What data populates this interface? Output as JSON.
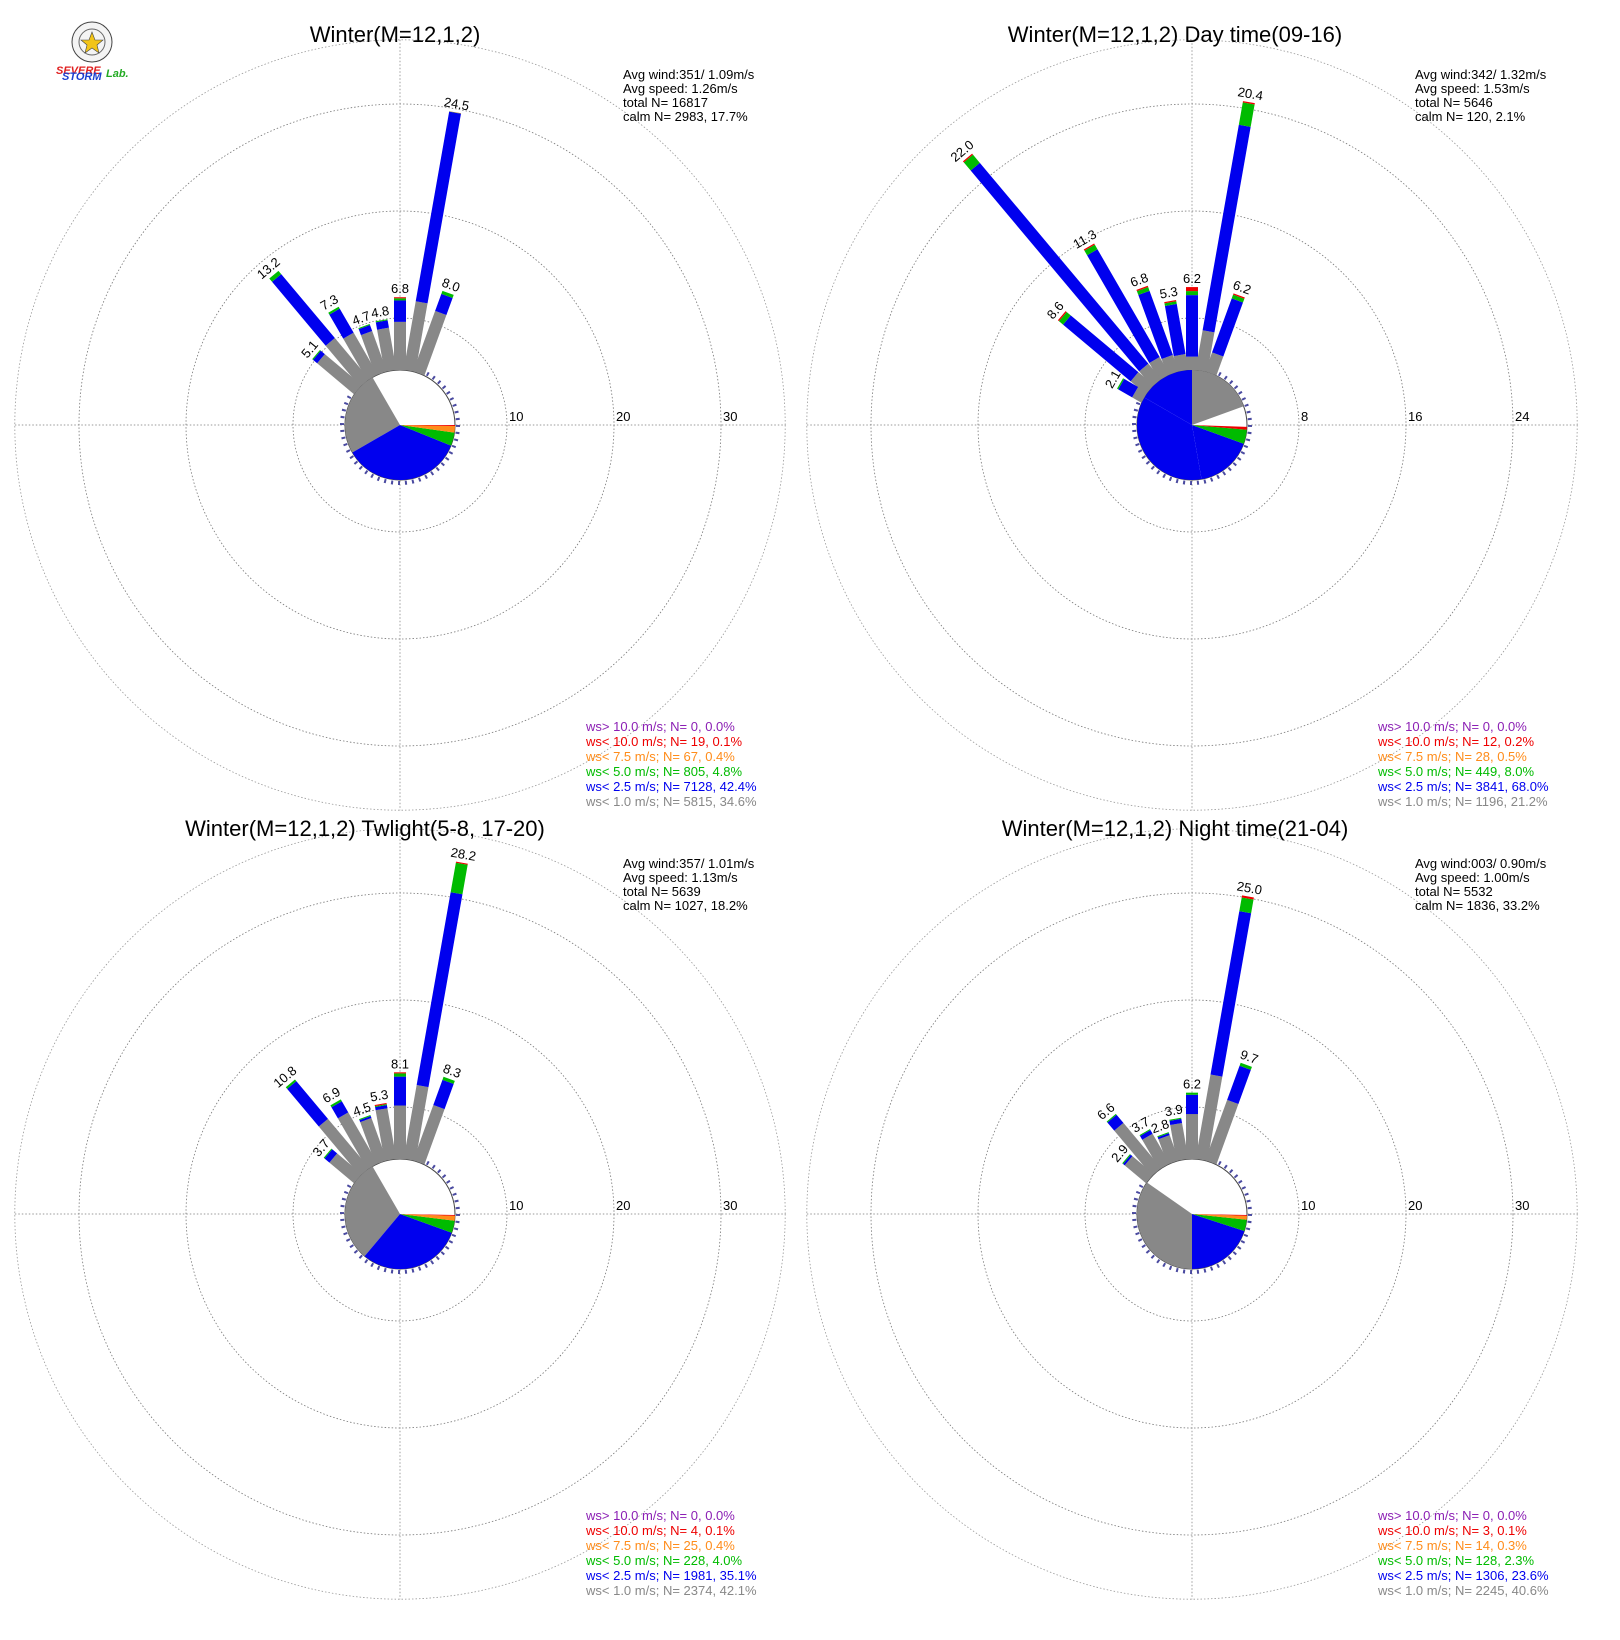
{
  "logo": {
    "lines": [
      "SEVERE",
      "STORM",
      "Lab."
    ],
    "colors": {
      "severe": "#e02020",
      "storm": "#1a3fd0",
      "lab": "#22aa22"
    }
  },
  "legend_colors": [
    "#8b1fb4",
    "#ee0000",
    "#ff8c1a",
    "#00bb00",
    "#0000ee",
    "#888888"
  ],
  "chart_data": [
    {
      "type": "wind-rose",
      "title": "Winter(M=12,1,2)",
      "rings": [
        10,
        20,
        30
      ],
      "stats": [
        "Avg wind:351/ 1.09m/s",
        "Avg speed: 1.26m/s",
        "total N=       16817",
        "calm N=   2983,  17.7%"
      ],
      "legend": [
        "ws> 10.0 m/s; N=     0,  0.0%",
        "ws< 10.0 m/s; N=    19,  0.1%",
        "ws<  7.5 m/s; N=    67,  0.4%",
        "ws<  5.0 m/s; N=   805,  4.8%",
        "ws<  2.5 m/s; N=  7128, 42.4%",
        "ws<  1.0 m/s; N=  5815, 34.6%"
      ],
      "calm_sectors": [
        {
          "start": 330,
          "end": 240,
          "color": "#888888"
        },
        {
          "start": 240,
          "end": 112,
          "color": "#0000ee"
        },
        {
          "start": 112,
          "end": 98,
          "color": "#00bb00"
        },
        {
          "start": 98,
          "end": 91,
          "color": "#ff8c1a"
        },
        {
          "start": 91,
          "end": 90,
          "color": "#ee0000"
        }
      ],
      "bars": [
        {
          "dir": 10,
          "value": 24.5,
          "label": "24.5",
          "segs": [
            6.5,
            18.0,
            0.02,
            0.02
          ]
        },
        {
          "dir": 20,
          "value": 8.0,
          "label": "8.0",
          "segs": [
            6.0,
            1.7,
            0.3,
            0.0
          ]
        },
        {
          "dir": 0,
          "value": 6.8,
          "label": "6.8",
          "segs": [
            4.5,
            2.0,
            0.2,
            0.1
          ]
        },
        {
          "dir": 350,
          "value": 4.8,
          "label": "4.8",
          "segs": [
            4.0,
            0.7,
            0.1,
            0.0
          ]
        },
        {
          "dir": 340,
          "value": 4.7,
          "label": "4.7",
          "segs": [
            4.0,
            0.6,
            0.1,
            0.0
          ]
        },
        {
          "dir": 330,
          "value": 7.3,
          "label": "7.3",
          "segs": [
            4.5,
            2.6,
            0.2,
            0.0
          ]
        },
        {
          "dir": 320,
          "value": 13.2,
          "label": "13.2",
          "segs": [
            5.0,
            7.8,
            0.4,
            0.0
          ]
        },
        {
          "dir": 310,
          "value": 5.1,
          "label": "5.1",
          "segs": [
            4.5,
            0.5,
            0.1,
            0.0
          ]
        }
      ]
    },
    {
      "type": "wind-rose",
      "title": "Winter(M=12,1,2) Day time(09-16)",
      "rings": [
        8,
        16,
        24
      ],
      "stats": [
        "Avg wind:342/ 1.32m/s",
        "Avg speed: 1.53m/s",
        "total N=        5646",
        "calm N=    120,   2.1%"
      ],
      "legend": [
        "ws> 10.0 m/s; N=     0,  0.0%",
        "ws< 10.0 m/s; N=    12,  0.2%",
        "ws<  7.5 m/s; N=    28,  0.5%",
        "ws<  5.0 m/s; N=   449,  8.0%",
        "ws<  2.5 m/s; N=  3841, 68.0%",
        "ws<  1.0 m/s; N=  1196, 21.2%"
      ],
      "calm_sectors": [
        {
          "start": 70,
          "end": 0,
          "color": "#888888"
        },
        {
          "start": 0,
          "end": 300,
          "color": "#0000ee"
        },
        {
          "start": 300,
          "end": 170,
          "color": "#0000ee"
        },
        {
          "start": 170,
          "end": 110,
          "color": "#0000ee"
        },
        {
          "start": 110,
          "end": 95,
          "color": "#00bb00"
        },
        {
          "start": 95,
          "end": 92,
          "color": "#ee0000"
        }
      ],
      "bars": [
        {
          "dir": 10,
          "value": 20.4,
          "label": "20.4",
          "segs": [
            3.0,
            15.6,
            1.7,
            0.1
          ]
        },
        {
          "dir": 20,
          "value": 6.2,
          "label": "6.2",
          "segs": [
            1.5,
            4.3,
            0.3,
            0.1
          ]
        },
        {
          "dir": 0,
          "value": 6.2,
          "label": "6.2",
          "segs": [
            1.0,
            4.6,
            0.3,
            0.3
          ]
        },
        {
          "dir": 350,
          "value": 5.3,
          "label": "5.3",
          "segs": [
            1.2,
            3.8,
            0.2,
            0.1
          ]
        },
        {
          "dir": 340,
          "value": 6.8,
          "label": "6.8",
          "segs": [
            1.3,
            5.1,
            0.3,
            0.1
          ]
        },
        {
          "dir": 330,
          "value": 11.3,
          "label": "11.3",
          "segs": [
            1.5,
            9.3,
            0.4,
            0.1
          ]
        },
        {
          "dir": 320,
          "value": 22.0,
          "label": "22.0",
          "segs": [
            1.5,
            19.6,
            0.8,
            0.1
          ]
        },
        {
          "dir": 310,
          "value": 8.6,
          "label": "8.6",
          "segs": [
            1.5,
            6.6,
            0.4,
            0.1
          ]
        },
        {
          "dir": 300,
          "value": 2.1,
          "label": "2.1",
          "segs": [
            0.8,
            1.2,
            0.1,
            0.0
          ]
        }
      ]
    },
    {
      "type": "wind-rose",
      "title": "Winter(M=12,1,2) Twlight(5-8, 17-20)",
      "rings": [
        10,
        20,
        30
      ],
      "stats": [
        "Avg wind:357/ 1.01m/s",
        "Avg speed: 1.13m/s",
        "total N=        5639",
        "calm N=   1027,  18.2%"
      ],
      "legend": [
        "ws> 10.0 m/s; N=     0,  0.0%",
        "ws< 10.0 m/s; N=     4,  0.1%",
        "ws<  7.5 m/s; N=    25,  0.4%",
        "ws<  5.0 m/s; N=   228,  4.0%",
        "ws<  2.5 m/s; N=  1981, 35.1%",
        "ws<  1.0 m/s; N=  2374, 42.1%"
      ],
      "calm_sectors": [
        {
          "start": 330,
          "end": 220,
          "color": "#888888"
        },
        {
          "start": 220,
          "end": 110,
          "color": "#0000ee"
        },
        {
          "start": 110,
          "end": 97,
          "color": "#00bb00"
        },
        {
          "start": 97,
          "end": 92,
          "color": "#ff8c1a"
        },
        {
          "start": 92,
          "end": 91,
          "color": "#ee0000"
        }
      ],
      "bars": [
        {
          "dir": 10,
          "value": 28.2,
          "label": "28.2",
          "segs": [
            7.0,
            18.3,
            2.8,
            0.1
          ]
        },
        {
          "dir": 20,
          "value": 8.3,
          "label": "8.3",
          "segs": [
            5.5,
            2.5,
            0.3,
            0.0
          ]
        },
        {
          "dir": 0,
          "value": 8.1,
          "label": "8.1",
          "segs": [
            5.0,
            2.7,
            0.3,
            0.1
          ]
        },
        {
          "dir": 350,
          "value": 5.3,
          "label": "5.3",
          "segs": [
            4.8,
            0.3,
            0.1,
            0.1
          ]
        },
        {
          "dir": 340,
          "value": 4.5,
          "label": "4.5",
          "segs": [
            4.2,
            0.2,
            0.1,
            0.0
          ]
        },
        {
          "dir": 330,
          "value": 6.9,
          "label": "6.9",
          "segs": [
            5.5,
            1.2,
            0.2,
            0.0
          ]
        },
        {
          "dir": 320,
          "value": 10.8,
          "label": "10.8",
          "segs": [
            6.0,
            4.6,
            0.2,
            0.0
          ]
        },
        {
          "dir": 310,
          "value": 3.7,
          "label": "3.7",
          "segs": [
            3.0,
            0.6,
            0.1,
            0.0
          ]
        }
      ]
    },
    {
      "type": "wind-rose",
      "title": "Winter(M=12,1,2) Night time(21-04)",
      "rings": [
        10,
        20,
        30
      ],
      "stats": [
        "Avg wind:003/ 0.90m/s",
        "Avg speed: 1.00m/s",
        "total N=        5532",
        "calm N=   1836,  33.2%"
      ],
      "legend": [
        "ws> 10.0 m/s; N=     0,  0.0%",
        "ws< 10.0 m/s; N=     3,  0.1%",
        "ws<  7.5 m/s; N=    14,  0.3%",
        "ws<  5.0 m/s; N=   128,  2.3%",
        "ws<  2.5 m/s; N=  1306, 23.6%",
        "ws<  1.0 m/s; N=  2245, 40.6%"
      ],
      "calm_sectors": [
        {
          "start": 305,
          "end": 180,
          "color": "#888888"
        },
        {
          "start": 180,
          "end": 108,
          "color": "#0000ee"
        },
        {
          "start": 108,
          "end": 96,
          "color": "#00bb00"
        },
        {
          "start": 96,
          "end": 92,
          "color": "#ff8c1a"
        },
        {
          "start": 92,
          "end": 91,
          "color": "#ee0000"
        }
      ],
      "bars": [
        {
          "dir": 10,
          "value": 25.0,
          "label": "25.0",
          "segs": [
            8.0,
            15.5,
            1.3,
            0.2
          ]
        },
        {
          "dir": 20,
          "value": 9.7,
          "label": "9.7",
          "segs": [
            6.0,
            3.4,
            0.3,
            0.0
          ]
        },
        {
          "dir": 0,
          "value": 6.2,
          "label": "6.2",
          "segs": [
            4.2,
            1.8,
            0.2,
            0.0
          ]
        },
        {
          "dir": 350,
          "value": 3.9,
          "label": "3.9",
          "segs": [
            3.4,
            0.4,
            0.1,
            0.0
          ]
        },
        {
          "dir": 340,
          "value": 2.8,
          "label": "2.8",
          "segs": [
            2.5,
            0.2,
            0.1,
            0.0
          ]
        },
        {
          "dir": 330,
          "value": 3.7,
          "label": "3.7",
          "segs": [
            3.2,
            0.4,
            0.1,
            0.0
          ]
        },
        {
          "dir": 320,
          "value": 6.6,
          "label": "6.6",
          "segs": [
            5.5,
            1.0,
            0.1,
            0.0
          ]
        },
        {
          "dir": 310,
          "value": 2.9,
          "label": "2.9",
          "segs": [
            2.6,
            0.2,
            0.1,
            0.0
          ]
        }
      ]
    }
  ]
}
